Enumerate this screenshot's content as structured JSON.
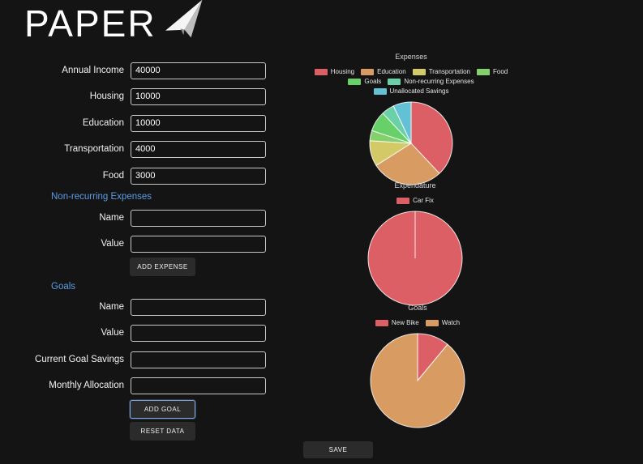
{
  "logo": {
    "text": "PAPER"
  },
  "form": {
    "fields": [
      {
        "label": "Annual Income",
        "value": "40000"
      },
      {
        "label": "Housing",
        "value": "10000"
      },
      {
        "label": "Education",
        "value": "10000"
      },
      {
        "label": "Transportation",
        "value": "4000"
      },
      {
        "label": "Food",
        "value": "3000"
      }
    ],
    "non_recurring": {
      "heading": "Non-recurring Expenses",
      "fields": [
        {
          "label": "Name",
          "value": ""
        },
        {
          "label": "Value",
          "value": ""
        }
      ],
      "add_button": "ADD EXPENSE"
    },
    "goals": {
      "heading": "Goals",
      "fields": [
        {
          "label": "Name",
          "value": ""
        },
        {
          "label": "Value",
          "value": ""
        },
        {
          "label": "Current Goal Savings",
          "value": ""
        },
        {
          "label": "Monthly Allocation",
          "value": ""
        }
      ],
      "add_button": "ADD GOAL",
      "reset_button": "RESET DATA"
    }
  },
  "save_button": "SAVE",
  "chart_data": [
    {
      "type": "pie",
      "title": "Expenses",
      "labels": [
        "Housing",
        "Education",
        "Transportation",
        "Food",
        "Goals",
        "Non-recurring Expenses",
        "Unallocated Savings"
      ],
      "values": [
        38,
        28,
        10,
        4,
        8,
        5,
        7
      ],
      "colors": [
        "#dc5f66",
        "#d89c62",
        "#d3ca67",
        "#84d06a",
        "#67d069",
        "#6ad0a8",
        "#62c1d4"
      ],
      "legend_position": "top",
      "diameter": 104
    },
    {
      "type": "pie",
      "title": "Expendature",
      "labels": [
        "Car Fix"
      ],
      "values": [
        100
      ],
      "colors": [
        "#dc5f66"
      ],
      "legend_position": "top",
      "diameter": 118
    },
    {
      "type": "pie",
      "title": "Goals",
      "labels": [
        "New Bike",
        "Watch"
      ],
      "values": [
        11,
        89
      ],
      "colors": [
        "#dc5f66",
        "#d89c62"
      ],
      "legend_position": "top",
      "diameter": 118
    }
  ]
}
